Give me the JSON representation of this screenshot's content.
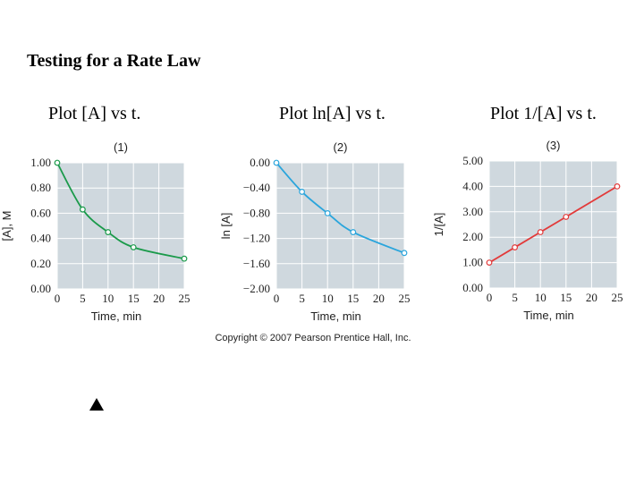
{
  "title": "Testing for a Rate Law",
  "plot_labels": [
    "Plot [A] vs t.",
    "Plot ln[A] vs t.",
    "Plot 1/[A] vs t."
  ],
  "copyright": "Copyright © 2007 Pearson Prentice Hall, Inc.",
  "marker_icon": "triangle-up-icon",
  "colors": {
    "panel_bg": "#cfd8de",
    "grid": "#ffffff",
    "green": "#1a9a4a",
    "blue": "#2aa5dc",
    "red": "#e23a3a"
  },
  "chart_data": [
    {
      "type": "line",
      "panel_label": "(1)",
      "xlabel": "Time, min",
      "ylabel": "[A], M",
      "x": [
        0,
        5,
        10,
        15,
        25
      ],
      "values": [
        1.0,
        0.63,
        0.45,
        0.33,
        0.24
      ],
      "xlim": [
        0,
        25
      ],
      "ylim": [
        0.0,
        1.0
      ],
      "xticks": [
        0,
        5,
        10,
        15,
        20,
        25
      ],
      "xtick_labels": [
        "0",
        "5",
        "10",
        "15",
        "20",
        "25"
      ],
      "yticks": [
        0.0,
        0.2,
        0.4,
        0.6,
        0.8,
        1.0
      ],
      "ytick_labels": [
        "0.00",
        "0.20",
        "0.40",
        "0.60",
        "0.80",
        "1.00"
      ],
      "color": "green",
      "curve": "smooth"
    },
    {
      "type": "line",
      "panel_label": "(2)",
      "xlabel": "Time, min",
      "ylabel": "ln [A]",
      "x": [
        0,
        5,
        10,
        15,
        25
      ],
      "values": [
        0.0,
        -0.46,
        -0.8,
        -1.1,
        -1.43
      ],
      "xlim": [
        0,
        25
      ],
      "ylim": [
        -2.0,
        0.0
      ],
      "xticks": [
        0,
        5,
        10,
        15,
        20,
        25
      ],
      "xtick_labels": [
        "0",
        "5",
        "10",
        "15",
        "20",
        "25"
      ],
      "yticks": [
        0.0,
        -0.4,
        -0.8,
        -1.2,
        -1.6,
        -2.0
      ],
      "ytick_labels": [
        "0.00",
        "−0.40",
        "−0.80",
        "−1.20",
        "−1.60",
        "−2.00"
      ],
      "color": "blue",
      "curve": "smooth"
    },
    {
      "type": "line",
      "panel_label": "(3)",
      "xlabel": "Time, min",
      "ylabel": "1/[A]",
      "x": [
        0,
        5,
        10,
        15,
        25
      ],
      "values": [
        1.0,
        1.6,
        2.2,
        2.8,
        4.0
      ],
      "xlim": [
        0,
        25
      ],
      "ylim": [
        0.0,
        5.0
      ],
      "xticks": [
        0,
        5,
        10,
        15,
        20,
        25
      ],
      "xtick_labels": [
        "0",
        "5",
        "10",
        "15",
        "20",
        "25"
      ],
      "yticks": [
        0.0,
        1.0,
        2.0,
        3.0,
        4.0,
        5.0
      ],
      "ytick_labels": [
        "0.00",
        "1.00",
        "2.00",
        "3.00",
        "4.00",
        "5.00"
      ],
      "color": "red",
      "curve": "linear"
    }
  ]
}
